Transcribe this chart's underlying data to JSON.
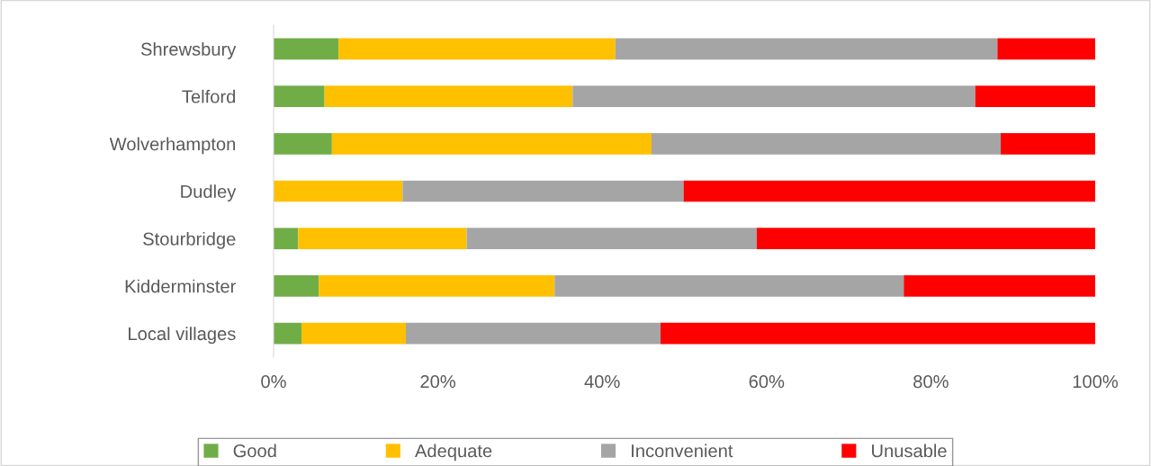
{
  "chart_data": {
    "type": "bar",
    "orientation": "horizontal",
    "stacked": true,
    "categories": [
      "Shrewsbury",
      "Telford",
      "Wolverhampton",
      "Dudley",
      "Stourbridge",
      "Kidderminster",
      "Local villages"
    ],
    "series": [
      {
        "name": "Good",
        "color": "#70ad47",
        "values": [
          7.9,
          6.2,
          7.1,
          0,
          3.0,
          5.5,
          3.4
        ]
      },
      {
        "name": "Adequate",
        "color": "#ffc000",
        "values": [
          33.7,
          30.2,
          38.9,
          15.7,
          20.5,
          28.7,
          12.7
        ]
      },
      {
        "name": "Inconvenient",
        "color": "#a5a5a5",
        "values": [
          46.5,
          49.0,
          42.5,
          34.2,
          35.3,
          42.5,
          31.0
        ]
      },
      {
        "name": "Unusable",
        "color": "#ff0000",
        "values": [
          11.9,
          14.6,
          11.5,
          50.1,
          41.2,
          23.3,
          52.9
        ]
      }
    ],
    "xlim": [
      0,
      100
    ],
    "xticks": [
      {
        "value": 0,
        "label": "0%"
      },
      {
        "value": 20,
        "label": "20%"
      },
      {
        "value": 40,
        "label": "40%"
      },
      {
        "value": 60,
        "label": "60%"
      },
      {
        "value": 80,
        "label": "80%"
      },
      {
        "value": 100,
        "label": "100%"
      }
    ],
    "grid": false,
    "legend": "bottom"
  }
}
